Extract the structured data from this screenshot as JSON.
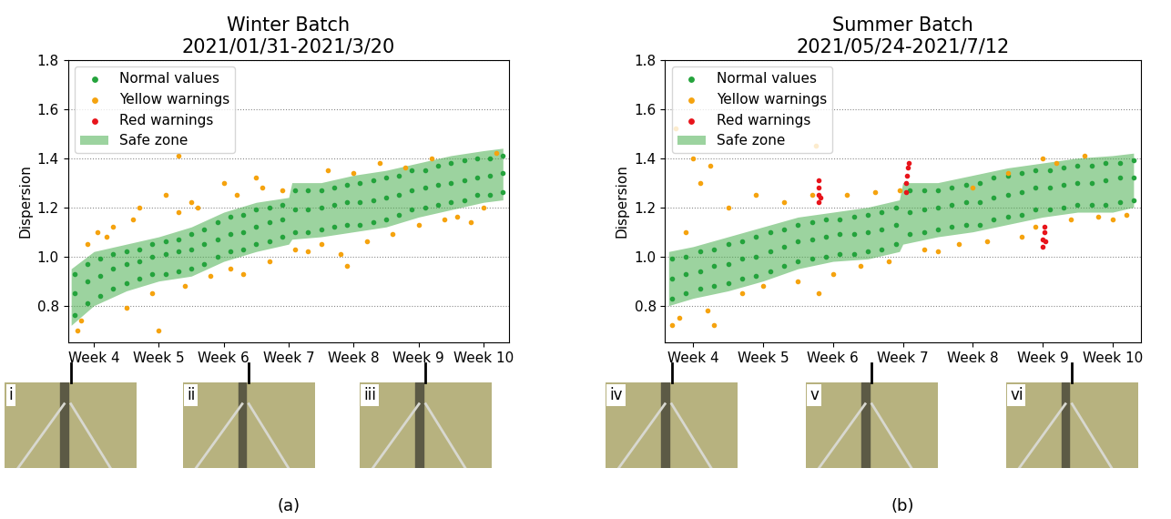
{
  "chart_data": [
    {
      "type": "scatter",
      "title": "Winter Batch\n2021/01/31-2021/3/20",
      "y_label": "Dispersion",
      "panel_label": "(a)",
      "insets": [
        "i",
        "ii",
        "iii"
      ],
      "xlim": [
        3.6,
        10.4
      ],
      "ylim": [
        0.65,
        1.8
      ],
      "xticks": [
        {
          "value": 4,
          "label": "Week 4"
        },
        {
          "value": 5,
          "label": "Week 5"
        },
        {
          "value": 6,
          "label": "Week 6"
        },
        {
          "value": 7,
          "label": "Week 7"
        },
        {
          "value": 8,
          "label": "Week 8"
        },
        {
          "value": 9,
          "label": "Week 9"
        },
        {
          "value": 10,
          "label": "Week 10"
        }
      ],
      "yticks": [
        {
          "value": 0.8,
          "label": "0.8"
        },
        {
          "value": 1.0,
          "label": "1.0"
        },
        {
          "value": 1.2,
          "label": "1.2"
        },
        {
          "value": 1.4,
          "label": "1.4"
        },
        {
          "value": 1.6,
          "label": "1.6"
        },
        {
          "value": 1.8,
          "label": "1.8"
        }
      ],
      "grid": "y",
      "legend": "upper left",
      "tick_labels": true,
      "series": [
        {
          "name": "Normal values",
          "color": "#24a33c",
          "type": "scatter",
          "marker": "o",
          "x": [
            3.7,
            3.7,
            3.7,
            3.9,
            3.9,
            3.9,
            4.1,
            4.1,
            4.1,
            4.3,
            4.3,
            4.3,
            4.5,
            4.5,
            4.5,
            4.7,
            4.7,
            4.7,
            4.9,
            4.9,
            4.9,
            5.1,
            5.1,
            5.1,
            5.3,
            5.3,
            5.3,
            5.5,
            5.5,
            5.5,
            5.7,
            5.7,
            5.7,
            5.9,
            5.9,
            5.9,
            6.1,
            6.1,
            6.1,
            6.3,
            6.3,
            6.3,
            6.5,
            6.5,
            6.5,
            6.7,
            6.7,
            6.7,
            6.9,
            6.9,
            6.9,
            7.1,
            7.1,
            7.1,
            7.3,
            7.3,
            7.3,
            7.5,
            7.5,
            7.5,
            7.7,
            7.7,
            7.7,
            7.9,
            7.9,
            7.9,
            8.1,
            8.1,
            8.1,
            8.3,
            8.3,
            8.3,
            8.5,
            8.5,
            8.5,
            8.7,
            8.7,
            8.7,
            8.9,
            8.9,
            8.9,
            9.1,
            9.1,
            9.1,
            9.3,
            9.3,
            9.3,
            9.5,
            9.5,
            9.5,
            9.7,
            9.7,
            9.7,
            9.9,
            9.9,
            9.9,
            10.1,
            10.1,
            10.1,
            10.3,
            10.3,
            10.3
          ],
          "values": [
            0.76,
            0.85,
            0.93,
            0.81,
            0.9,
            0.97,
            0.84,
            0.92,
            0.99,
            0.87,
            0.95,
            1.01,
            0.89,
            0.97,
            1.02,
            0.91,
            0.98,
            1.03,
            0.93,
            1.0,
            1.05,
            0.93,
            1.01,
            1.06,
            0.94,
            1.02,
            1.07,
            0.95,
            1.03,
            1.09,
            0.97,
            1.05,
            1.11,
            1.0,
            1.07,
            1.14,
            1.02,
            1.09,
            1.16,
            1.03,
            1.1,
            1.17,
            1.05,
            1.12,
            1.19,
            1.06,
            1.14,
            1.2,
            1.08,
            1.15,
            1.21,
            1.1,
            1.19,
            1.27,
            1.1,
            1.19,
            1.27,
            1.11,
            1.2,
            1.27,
            1.12,
            1.21,
            1.28,
            1.13,
            1.22,
            1.29,
            1.13,
            1.22,
            1.3,
            1.14,
            1.23,
            1.31,
            1.15,
            1.24,
            1.32,
            1.17,
            1.25,
            1.33,
            1.19,
            1.27,
            1.35,
            1.2,
            1.28,
            1.35,
            1.21,
            1.29,
            1.37,
            1.22,
            1.3,
            1.38,
            1.23,
            1.31,
            1.39,
            1.25,
            1.32,
            1.4,
            1.25,
            1.33,
            1.4,
            1.26,
            1.34,
            1.41
          ]
        },
        {
          "name": "Yellow warnings",
          "color": "#f5a30f",
          "type": "scatter",
          "marker": "o",
          "x": [
            3.75,
            3.8,
            3.9,
            4.05,
            4.2,
            4.3,
            4.5,
            4.6,
            4.7,
            4.9,
            5.0,
            5.1,
            5.3,
            5.3,
            5.4,
            5.5,
            5.6,
            5.8,
            6.0,
            6.1,
            6.2,
            6.3,
            6.5,
            6.6,
            6.7,
            6.9,
            7.1,
            7.3,
            7.5,
            7.6,
            7.8,
            7.9,
            8.0,
            8.2,
            8.4,
            8.6,
            8.8,
            9.0,
            9.2,
            9.4,
            9.6,
            9.8,
            10.0,
            10.2
          ],
          "values": [
            0.7,
            0.74,
            1.05,
            1.1,
            1.08,
            1.12,
            0.79,
            1.15,
            1.2,
            0.85,
            0.7,
            1.25,
            1.41,
            1.18,
            0.88,
            1.22,
            1.2,
            0.92,
            1.3,
            0.95,
            1.25,
            0.93,
            1.32,
            1.28,
            0.98,
            1.27,
            1.03,
            1.02,
            1.05,
            1.35,
            1.01,
            0.96,
            1.34,
            1.06,
            1.38,
            1.09,
            1.36,
            1.13,
            1.4,
            1.15,
            1.16,
            1.14,
            1.2,
            1.42
          ]
        },
        {
          "name": "Red warnings",
          "color": "#e8141b",
          "type": "scatter",
          "marker": "o",
          "x": [],
          "values": []
        },
        {
          "name": "Safe zone",
          "color": "#4caf50",
          "type": "area",
          "x": [
            3.65,
            4,
            4.5,
            5,
            5.5,
            6,
            6.5,
            7,
            7.05,
            7.5,
            8,
            8.5,
            9,
            9.5,
            10,
            10.3
          ],
          "lower": [
            0.72,
            0.8,
            0.86,
            0.9,
            0.92,
            0.98,
            1.02,
            1.05,
            1.07,
            1.08,
            1.1,
            1.12,
            1.16,
            1.19,
            1.22,
            1.23
          ],
          "upper": [
            0.95,
            1.02,
            1.05,
            1.08,
            1.12,
            1.18,
            1.22,
            1.24,
            1.3,
            1.3,
            1.33,
            1.35,
            1.38,
            1.41,
            1.43,
            1.44
          ]
        }
      ]
    },
    {
      "type": "scatter",
      "title": "Summer Batch\n2021/05/24-2021/7/12",
      "y_label": "Dispersion",
      "panel_label": "(b)",
      "insets": [
        "iv",
        "v",
        "vi"
      ],
      "xlim": [
        3.6,
        10.4
      ],
      "ylim": [
        0.65,
        1.8
      ],
      "xticks": [
        {
          "value": 4,
          "label": "Week 4"
        },
        {
          "value": 5,
          "label": "Week 5"
        },
        {
          "value": 6,
          "label": "Week 6"
        },
        {
          "value": 7,
          "label": "Week 7"
        },
        {
          "value": 8,
          "label": "Week 8"
        },
        {
          "value": 9,
          "label": "Week 9"
        },
        {
          "value": 10,
          "label": "Week 10"
        }
      ],
      "yticks": [
        {
          "value": 0.8,
          "label": "0.8"
        },
        {
          "value": 1.0,
          "label": "1.0"
        },
        {
          "value": 1.2,
          "label": "1.2"
        },
        {
          "value": 1.4,
          "label": "1.4"
        },
        {
          "value": 1.6,
          "label": "1.6"
        },
        {
          "value": 1.8,
          "label": "1.8"
        }
      ],
      "grid": "y",
      "legend": "upper left",
      "tick_labels": true,
      "series": [
        {
          "name": "Normal values",
          "color": "#24a33c",
          "type": "scatter",
          "marker": "o",
          "x": [
            3.7,
            3.7,
            3.7,
            3.9,
            3.9,
            3.9,
            4.1,
            4.1,
            4.1,
            4.3,
            4.3,
            4.3,
            4.5,
            4.5,
            4.5,
            4.7,
            4.7,
            4.7,
            4.9,
            4.9,
            4.9,
            5.1,
            5.1,
            5.1,
            5.3,
            5.3,
            5.3,
            5.5,
            5.5,
            5.5,
            5.7,
            5.7,
            5.7,
            5.9,
            5.9,
            5.9,
            6.1,
            6.1,
            6.1,
            6.3,
            6.3,
            6.3,
            6.5,
            6.5,
            6.5,
            6.7,
            6.7,
            6.7,
            6.9,
            6.9,
            6.9,
            7.1,
            7.1,
            7.1,
            7.3,
            7.3,
            7.3,
            7.5,
            7.5,
            7.5,
            7.7,
            7.7,
            7.7,
            7.9,
            7.9,
            7.9,
            8.1,
            8.1,
            8.1,
            8.3,
            8.3,
            8.3,
            8.5,
            8.5,
            8.5,
            8.7,
            8.7,
            8.7,
            8.9,
            8.9,
            8.9,
            9.1,
            9.1,
            9.1,
            9.3,
            9.3,
            9.3,
            9.5,
            9.5,
            9.5,
            9.7,
            9.7,
            9.7,
            9.9,
            9.9,
            9.9,
            10.1,
            10.1,
            10.1,
            10.3,
            10.3,
            10.3
          ],
          "values": [
            0.83,
            0.91,
            0.99,
            0.85,
            0.93,
            1.0,
            0.87,
            0.94,
            1.02,
            0.88,
            0.96,
            1.03,
            0.89,
            0.97,
            1.05,
            0.91,
            0.99,
            1.06,
            0.92,
            1.0,
            1.08,
            0.94,
            1.02,
            1.1,
            0.96,
            1.04,
            1.11,
            0.98,
            1.06,
            1.13,
            0.99,
            1.07,
            1.14,
            1.0,
            1.08,
            1.15,
            1.01,
            1.09,
            1.15,
            1.01,
            1.09,
            1.16,
            1.02,
            1.1,
            1.17,
            1.03,
            1.11,
            1.18,
            1.05,
            1.13,
            1.2,
            1.09,
            1.18,
            1.27,
            1.1,
            1.19,
            1.27,
            1.11,
            1.2,
            1.27,
            1.12,
            1.21,
            1.28,
            1.13,
            1.22,
            1.29,
            1.13,
            1.22,
            1.3,
            1.15,
            1.24,
            1.32,
            1.16,
            1.25,
            1.33,
            1.17,
            1.26,
            1.34,
            1.19,
            1.28,
            1.35,
            1.19,
            1.28,
            1.35,
            1.2,
            1.29,
            1.36,
            1.21,
            1.3,
            1.37,
            1.21,
            1.3,
            1.37,
            1.21,
            1.31,
            1.38,
            1.22,
            1.32,
            1.38,
            1.23,
            1.32,
            1.39
          ]
        },
        {
          "name": "Yellow warnings",
          "color": "#f5a30f",
          "type": "scatter",
          "marker": "o",
          "x": [
            3.7,
            3.75,
            3.8,
            3.9,
            4.0,
            4.1,
            4.2,
            4.25,
            4.3,
            4.5,
            4.7,
            4.9,
            5.0,
            5.3,
            5.5,
            5.7,
            5.75,
            5.8,
            6.0,
            6.2,
            6.4,
            6.6,
            6.8,
            6.95,
            7.3,
            7.5,
            7.8,
            8.0,
            8.2,
            8.5,
            8.7,
            8.9,
            9.0,
            9.2,
            9.4,
            9.6,
            9.8,
            10.0,
            10.2
          ],
          "values": [
            0.72,
            1.52,
            0.75,
            1.1,
            1.4,
            1.3,
            0.78,
            1.37,
            0.72,
            1.2,
            0.85,
            1.25,
            0.88,
            1.22,
            0.9,
            1.25,
            1.45,
            0.85,
            0.93,
            1.25,
            0.96,
            1.26,
            0.98,
            1.27,
            1.03,
            1.02,
            1.05,
            1.28,
            1.06,
            1.34,
            1.08,
            1.12,
            1.4,
            1.38,
            1.15,
            1.41,
            1.16,
            1.15,
            1.17
          ]
        },
        {
          "name": "Red warnings",
          "color": "#e8141b",
          "type": "scatter",
          "marker": "o",
          "x": [
            5.8,
            5.8,
            5.8,
            5.8,
            5.82,
            7.05,
            7.05,
            7.06,
            7.07,
            7.08,
            9.0,
            9.0,
            9.02,
            9.02,
            9.04
          ],
          "values": [
            1.22,
            1.25,
            1.28,
            1.31,
            1.24,
            1.26,
            1.3,
            1.33,
            1.36,
            1.38,
            1.04,
            1.07,
            1.1,
            1.12,
            1.06
          ]
        },
        {
          "name": "Safe zone",
          "color": "#4caf50",
          "type": "area",
          "x": [
            3.65,
            4,
            4.5,
            5,
            5.5,
            6,
            6.5,
            6.95,
            7.0,
            7.5,
            8,
            8.5,
            9,
            9.5,
            10,
            10.3
          ],
          "lower": [
            0.8,
            0.83,
            0.86,
            0.9,
            0.95,
            0.98,
            0.99,
            1.02,
            1.05,
            1.08,
            1.1,
            1.13,
            1.16,
            1.18,
            1.18,
            1.2
          ],
          "upper": [
            1.02,
            1.04,
            1.08,
            1.12,
            1.16,
            1.18,
            1.2,
            1.23,
            1.3,
            1.3,
            1.33,
            1.36,
            1.38,
            1.4,
            1.41,
            1.42
          ]
        }
      ]
    }
  ]
}
